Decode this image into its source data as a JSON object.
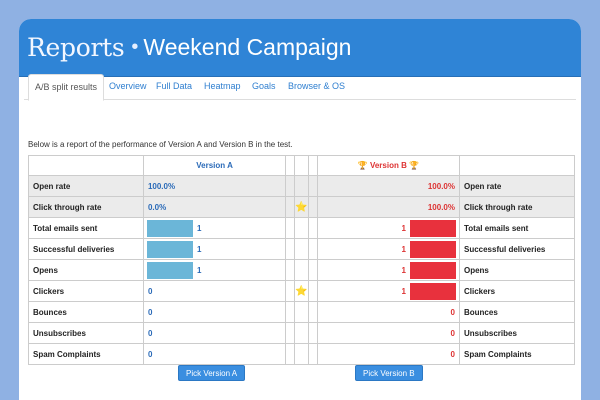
{
  "header": {
    "title": "Reports",
    "separator": "•",
    "campaign": "Weekend Campaign"
  },
  "tabs": [
    "A/B split results",
    "Overview",
    "Full Data",
    "Heatmap",
    "Goals",
    "Browser & OS"
  ],
  "intro": "Below is a report of the performance of Version A and Version B in the test.",
  "table": {
    "version_a": "Version A",
    "version_b": "Version B",
    "trophy": "🏆",
    "star": "⭐",
    "rows": [
      {
        "label": "Open rate",
        "a": "100.0%",
        "b": "100.0%"
      },
      {
        "label": "Click through rate",
        "a": "0.0%",
        "b": "100.0%"
      },
      {
        "label": "Total emails sent",
        "a": "1",
        "b": "1"
      },
      {
        "label": "Successful deliveries",
        "a": "1",
        "b": "1"
      },
      {
        "label": "Opens",
        "a": "1",
        "b": "1"
      },
      {
        "label": "Clickers",
        "a": "0",
        "b": "1"
      },
      {
        "label": "Bounces",
        "a": "0",
        "b": "0"
      },
      {
        "label": "Unsubscribes",
        "a": "0",
        "b": "0"
      },
      {
        "label": "Spam Complaints",
        "a": "0",
        "b": "0"
      }
    ]
  },
  "buttons": {
    "pick_a": "Pick Version A",
    "pick_b": "Pick Version B"
  },
  "colors": {
    "accent": "#2f84d6",
    "version_a": "#6bb6d8",
    "version_b": "#e8313d"
  }
}
